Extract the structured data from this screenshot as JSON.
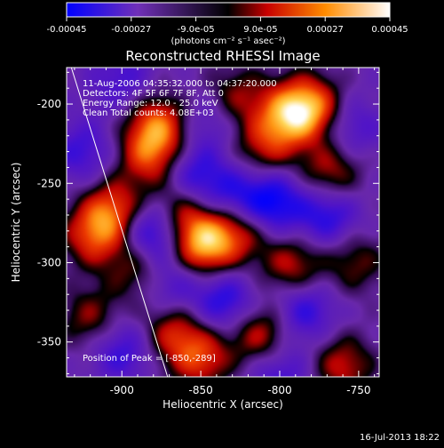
{
  "window": {
    "footer_timestamp": "16-Jul-2013 18:22"
  },
  "colorbar": {
    "tick_labels": [
      "-0.00045",
      "-0.00027",
      "-9.0e-05",
      "9.0e-05",
      "0.00027",
      "0.00045"
    ],
    "unit_label": "(photons cm⁻² s⁻¹ asec⁻²)",
    "range": [
      -0.00045,
      0.00045
    ]
  },
  "chart_data": {
    "type": "heatmap",
    "title": "Reconstructed RHESSI Image",
    "xlabel": "Heliocentric X (arcsec)",
    "ylabel": "Heliocentric Y (arcsec)",
    "xlim": [
      -935,
      -737
    ],
    "ylim": [
      -372,
      -177
    ],
    "x_ticks": [
      -900,
      -850,
      -800,
      -750
    ],
    "y_ticks": [
      -200,
      -250,
      -300,
      -350
    ],
    "annotations": [
      "11-Aug-2006 04:35:32.000 to 04:37:20.000",
      "Detectors: 4F 5F 6F 7F 8F, Att 0",
      "Energy Range: 12.0 - 25.0 keV",
      "Clean    Total counts: 4.08E+03"
    ],
    "peak_label": "Position of Peak = [-850,-289]",
    "peak": {
      "x": -850,
      "y": -289
    },
    "limb_line": [
      [
        -932,
        -177
      ],
      [
        -871,
        -372
      ]
    ],
    "colormap_stops": [
      "#0000ff",
      "#7030b8",
      "#000000",
      "#c80000",
      "#ff8c00",
      "#ffffff"
    ],
    "blobs": [
      {
        "x": -848,
        "y": -288,
        "v": 1.0
      },
      {
        "x": -877,
        "y": -213,
        "v": 0.75
      },
      {
        "x": -882,
        "y": -233,
        "v": 0.65
      },
      {
        "x": -864,
        "y": -268,
        "v": 0.55
      },
      {
        "x": -826,
        "y": -280,
        "v": 0.55
      },
      {
        "x": -905,
        "y": -267,
        "v": 0.7
      },
      {
        "x": -918,
        "y": -283,
        "v": 0.65
      },
      {
        "x": -890,
        "y": -305,
        "v": 0.45
      },
      {
        "x": -868,
        "y": -343,
        "v": 0.55
      },
      {
        "x": -850,
        "y": -360,
        "v": 0.65
      },
      {
        "x": -812,
        "y": -345,
        "v": 0.6
      },
      {
        "x": -792,
        "y": -302,
        "v": 0.55
      },
      {
        "x": -795,
        "y": -207,
        "v": 0.75
      },
      {
        "x": -780,
        "y": -202,
        "v": 0.8
      },
      {
        "x": -810,
        "y": -228,
        "v": 0.5
      },
      {
        "x": -768,
        "y": -243,
        "v": 0.55
      },
      {
        "x": -760,
        "y": -365,
        "v": 0.55
      },
      {
        "x": -752,
        "y": -300,
        "v": 0.4
      },
      {
        "x": -828,
        "y": -195,
        "v": 0.45
      },
      {
        "x": -920,
        "y": -335,
        "v": 0.45
      },
      {
        "x": -900,
        "y": -185,
        "v": -0.35
      },
      {
        "x": -855,
        "y": -245,
        "v": -0.5
      },
      {
        "x": -830,
        "y": -258,
        "v": -0.45
      },
      {
        "x": -880,
        "y": -280,
        "v": -0.75
      },
      {
        "x": -805,
        "y": -262,
        "v": -0.7
      },
      {
        "x": -770,
        "y": -270,
        "v": -0.55
      },
      {
        "x": -870,
        "y": -315,
        "v": -0.4
      },
      {
        "x": -835,
        "y": -325,
        "v": -0.55
      },
      {
        "x": -785,
        "y": -330,
        "v": -0.5
      },
      {
        "x": -900,
        "y": -355,
        "v": -0.45
      },
      {
        "x": -800,
        "y": -370,
        "v": -0.4
      },
      {
        "x": -925,
        "y": -230,
        "v": -0.4
      },
      {
        "x": -845,
        "y": -210,
        "v": -0.3
      },
      {
        "x": -755,
        "y": -215,
        "v": -0.35
      }
    ]
  }
}
